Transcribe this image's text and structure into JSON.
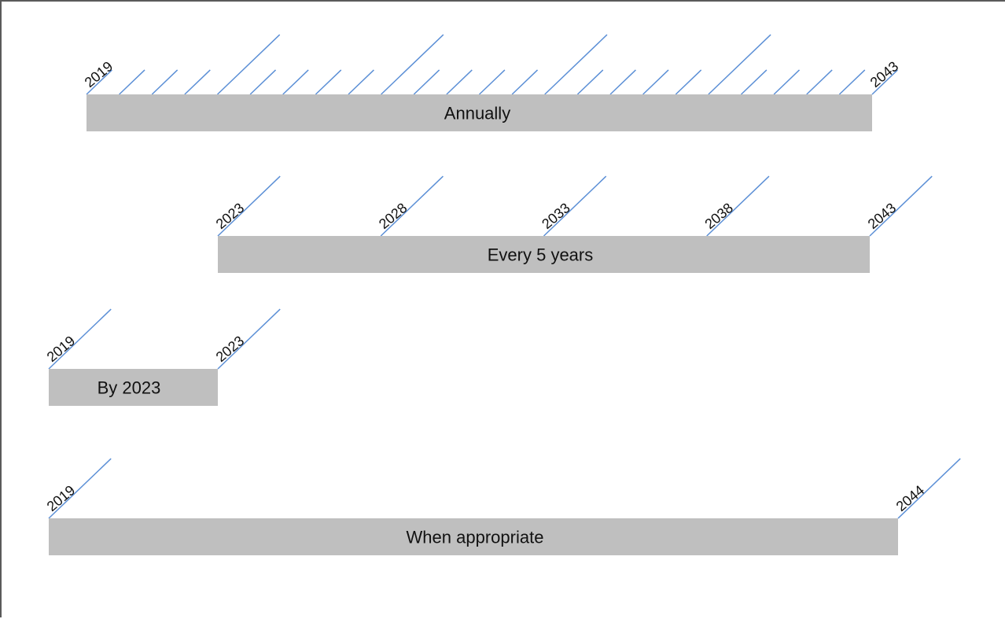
{
  "rows": [
    {
      "label": "Annually",
      "start_year": 2019,
      "end_year": 2043,
      "step": 1,
      "long_tick_years": [
        2023,
        2028,
        2033,
        2038
      ],
      "year_labels": [
        "2019",
        "2043"
      ]
    },
    {
      "label": "Every 5 years",
      "start_year": 2023,
      "end_year": 2043,
      "step": 5,
      "long_tick_years": [
        2023,
        2028,
        2033,
        2038,
        2043
      ],
      "year_labels": [
        "2023",
        "2028",
        "2033",
        "2038",
        "2043"
      ]
    },
    {
      "label": "By 2023",
      "start_year": 2019,
      "end_year": 2023,
      "step": 4,
      "long_tick_years": [
        2019,
        2023
      ],
      "year_labels": [
        "2019",
        "2023"
      ]
    },
    {
      "label": "When appropriate",
      "start_year": 2019,
      "end_year": 2044,
      "step": 25,
      "long_tick_years": [
        2019,
        2044
      ],
      "year_labels": [
        "2019",
        "2044"
      ]
    }
  ],
  "colors": {
    "bar": "#bfbfbf",
    "tick": "#5b8fd6",
    "text": "#111111"
  }
}
